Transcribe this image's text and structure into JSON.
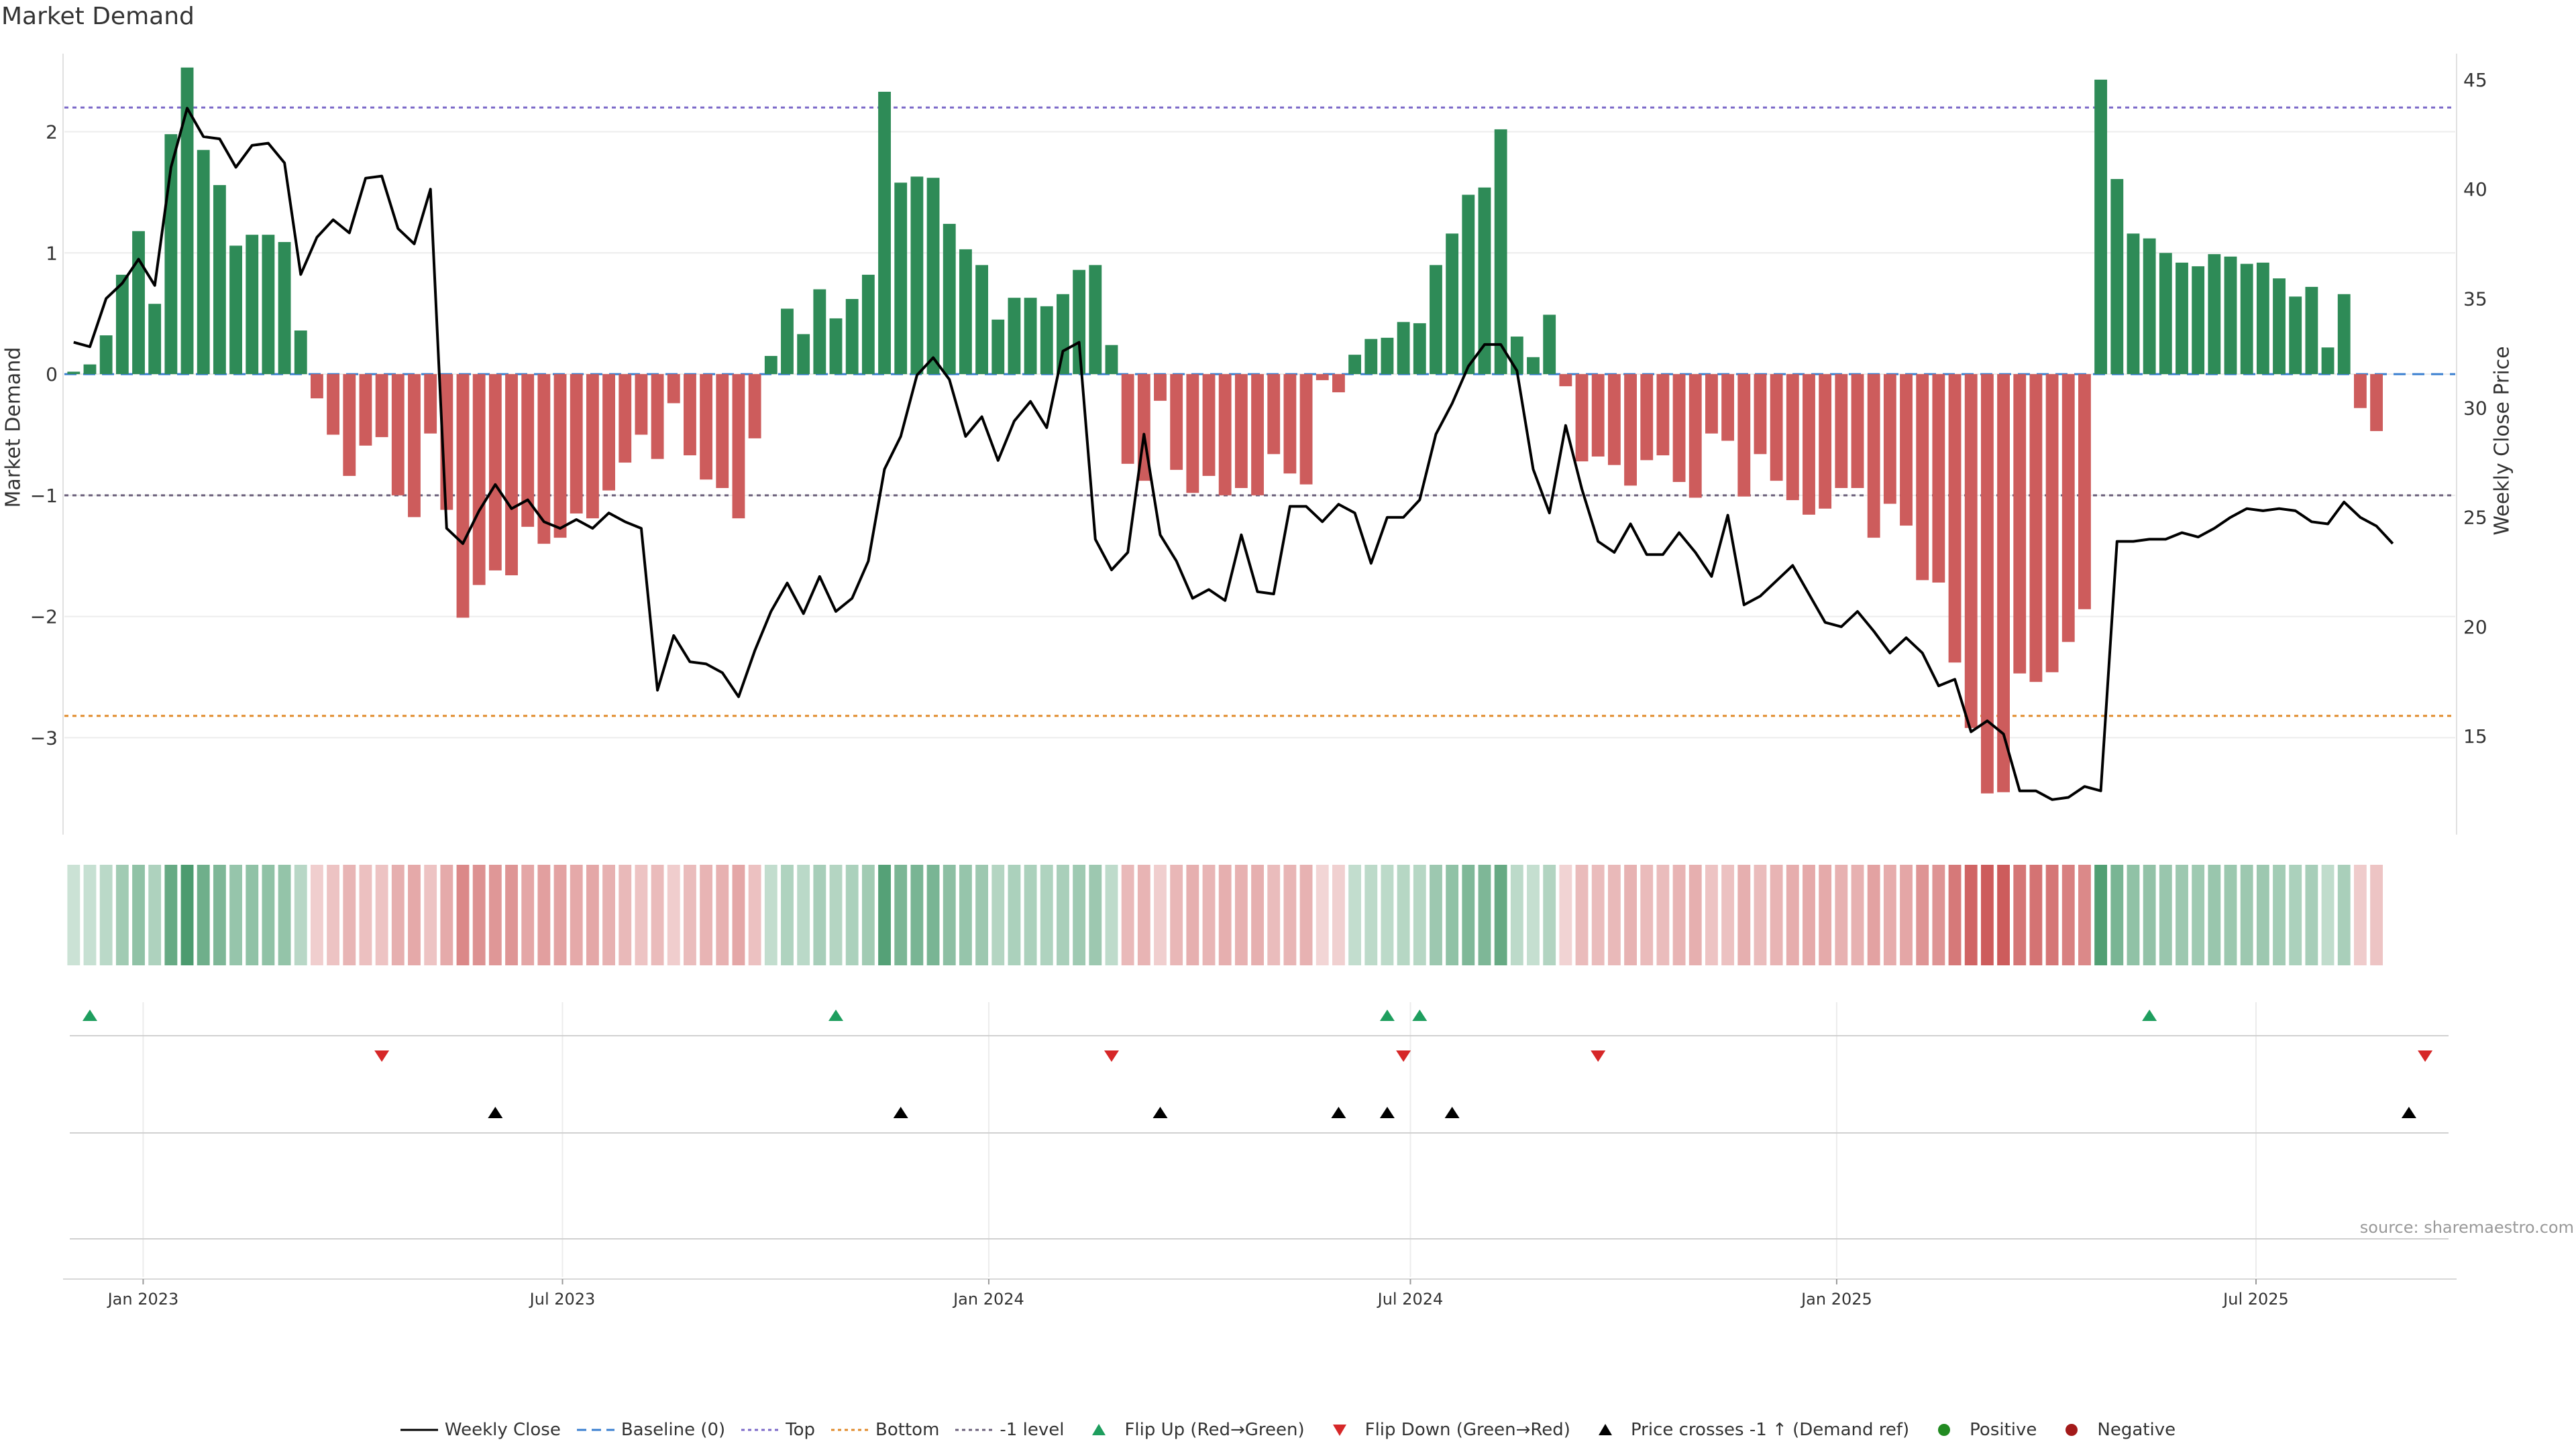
{
  "title": "Market Demand",
  "source": "source: sharemaestro.com",
  "colors": {
    "positive": "#2e8b57",
    "negative": "#cd5c5c",
    "price": "#000000",
    "top": "#7b68c8",
    "bottom": "#e08a2a",
    "minus1": "#6a5f7a",
    "baseline": "#3a7fd0",
    "flip_up": "#1e9e5e",
    "flip_down": "#d62728",
    "cross": "#000000",
    "dot_pos": "#228b22",
    "dot_neg": "#a31a1a"
  },
  "chart_data": {
    "type": "bar",
    "title": "Market Demand",
    "xlabel": "",
    "ylabel": "Market Demand",
    "y2label": "Weekly Close Price",
    "ylim": [
      -3.8,
      2.7
    ],
    "y2lim": [
      10.5,
      46.5
    ],
    "yticks": [
      2,
      1,
      0,
      -1,
      -2,
      -3
    ],
    "y2ticks": [
      45,
      40,
      35,
      30,
      25,
      20,
      15
    ],
    "ytick_labels": [
      "2",
      "1",
      "0",
      "−1",
      "−2",
      "−3"
    ],
    "y2tick_labels": [
      "45",
      "40",
      "35",
      "30",
      "25",
      "20",
      "15"
    ],
    "reference_lines": {
      "baseline": 0,
      "top": 2.2,
      "bottom": -2.82,
      "minus1": -1
    },
    "x_start": "2022-12-02",
    "interval_days": 7,
    "x_range": [
      "2022-11-28",
      "2025-09-25"
    ],
    "x_ticks": [
      {
        "date": "2023-01-01",
        "label": "Jan 2023"
      },
      {
        "date": "2023-07-01",
        "label": "Jul 2023"
      },
      {
        "date": "2024-01-01",
        "label": "Jan 2024"
      },
      {
        "date": "2024-07-01",
        "label": "Jul 2024"
      },
      {
        "date": "2025-01-01",
        "label": "Jan 2025"
      },
      {
        "date": "2025-07-01",
        "label": "Jul 2025"
      }
    ],
    "series": [
      {
        "name": "Market Demand",
        "type": "bar",
        "values": [
          0.02,
          0.08,
          0.32,
          0.82,
          1.18,
          0.58,
          1.98,
          2.53,
          1.85,
          1.56,
          1.06,
          1.15,
          1.15,
          1.09,
          0.36,
          -0.2,
          -0.5,
          -0.84,
          -0.59,
          -0.52,
          -1.0,
          -1.18,
          -0.49,
          -1.12,
          -2.01,
          -1.74,
          -1.62,
          -1.66,
          -1.26,
          -1.4,
          -1.35,
          -1.15,
          -1.19,
          -0.96,
          -0.73,
          -0.5,
          -0.7,
          -0.24,
          -0.67,
          -0.87,
          -0.94,
          -1.19,
          -0.53,
          0.15,
          0.54,
          0.33,
          0.7,
          0.46,
          0.62,
          0.82,
          2.33,
          1.58,
          1.63,
          1.62,
          1.24,
          1.03,
          0.9,
          0.45,
          0.63,
          0.63,
          0.56,
          0.66,
          0.86,
          0.9,
          0.24,
          -0.74,
          -0.88,
          -0.22,
          -0.79,
          -0.98,
          -0.84,
          -1.0,
          -0.94,
          -1.0,
          -0.66,
          -0.82,
          -0.91,
          -0.05,
          -0.15,
          0.16,
          0.29,
          0.3,
          0.43,
          0.42,
          0.9,
          1.16,
          1.48,
          1.54,
          2.02,
          0.31,
          0.14,
          0.49,
          -0.1,
          -0.72,
          -0.68,
          -0.75,
          -0.92,
          -0.71,
          -0.67,
          -0.89,
          -1.02,
          -0.49,
          -0.55,
          -1.01,
          -0.66,
          -0.88,
          -1.04,
          -1.16,
          -1.11,
          -0.94,
          -0.94,
          -1.35,
          -1.07,
          -1.25,
          -1.7,
          -1.72,
          -2.38,
          -2.92,
          -3.46,
          -3.45,
          -2.47,
          -2.54,
          -2.46,
          -2.21,
          -1.94,
          2.43,
          1.61,
          1.16,
          1.12,
          1.0,
          0.92,
          0.89,
          0.99,
          0.97,
          0.91,
          0.92,
          0.79,
          0.64,
          0.72,
          0.22,
          0.66,
          -0.28,
          -0.47
        ]
      },
      {
        "name": "Weekly Close",
        "type": "line",
        "axis": "right",
        "values": [
          33.0,
          32.8,
          35.0,
          35.7,
          36.8,
          35.6,
          41.0,
          43.7,
          42.4,
          42.3,
          41.0,
          42.0,
          42.1,
          41.2,
          36.1,
          37.8,
          38.6,
          38.0,
          40.5,
          40.6,
          38.2,
          37.5,
          40.0,
          24.5,
          23.8,
          25.3,
          26.5,
          25.4,
          25.8,
          24.8,
          24.5,
          24.9,
          24.5,
          25.2,
          24.8,
          24.5,
          17.1,
          19.6,
          18.4,
          18.3,
          17.9,
          16.8,
          18.9,
          20.7,
          22.0,
          20.6,
          22.3,
          20.7,
          21.3,
          23.0,
          27.2,
          28.7,
          31.5,
          32.3,
          31.3,
          28.7,
          29.6,
          27.6,
          29.4,
          30.3,
          29.1,
          32.6,
          33.0,
          24.0,
          22.6,
          23.4,
          28.8,
          24.2,
          23.0,
          21.3,
          21.7,
          21.2,
          24.2,
          21.6,
          21.5,
          25.5,
          25.5,
          24.8,
          25.6,
          25.2,
          22.9,
          25.0,
          25.0,
          25.8,
          28.8,
          30.2,
          31.9,
          32.9,
          32.9,
          31.7,
          27.2,
          25.2,
          29.2,
          26.3,
          23.9,
          23.4,
          24.7,
          23.3,
          23.3,
          24.3,
          23.4,
          22.3,
          25.1,
          21.0,
          21.4,
          22.1,
          22.8,
          21.5,
          20.2,
          20.0,
          20.7,
          19.8,
          18.8,
          19.5,
          18.8,
          17.3,
          17.6,
          15.2,
          15.7,
          15.1,
          12.5,
          12.5,
          12.1,
          12.2,
          12.7,
          12.5,
          23.9,
          23.9,
          24.0,
          24.0,
          24.3,
          24.1,
          24.5,
          25.0,
          25.4,
          25.3,
          25.4,
          25.3,
          24.8,
          24.7,
          25.7,
          25.0,
          24.6,
          23.8
        ]
      }
    ],
    "flip_up": [
      "2022-12-09",
      "2023-10-27",
      "2024-06-21",
      "2024-07-05",
      "2025-05-16"
    ],
    "flip_down": [
      "2023-04-14",
      "2024-02-23",
      "2024-06-28",
      "2024-09-20",
      "2025-09-12"
    ],
    "price_crosses": [
      "2023-06-02",
      "2023-11-24",
      "2024-03-15",
      "2024-05-31",
      "2024-06-21",
      "2024-07-19",
      "2025-09-05"
    ],
    "legend": [
      {
        "key": "close",
        "label": "Weekly Close"
      },
      {
        "key": "baseline",
        "label": "Baseline (0)"
      },
      {
        "key": "top",
        "label": "Top"
      },
      {
        "key": "bottom",
        "label": "Bottom"
      },
      {
        "key": "minus1",
        "label": "-1 level"
      },
      {
        "key": "flip_up",
        "label": "Flip Up (Red→Green)"
      },
      {
        "key": "flip_down",
        "label": "Flip Down (Green→Red)"
      },
      {
        "key": "cross",
        "label": "Price crosses -1 ↑ (Demand ref)"
      },
      {
        "key": "dot_pos",
        "label": "Positive"
      },
      {
        "key": "dot_neg",
        "label": "Negative"
      }
    ]
  }
}
